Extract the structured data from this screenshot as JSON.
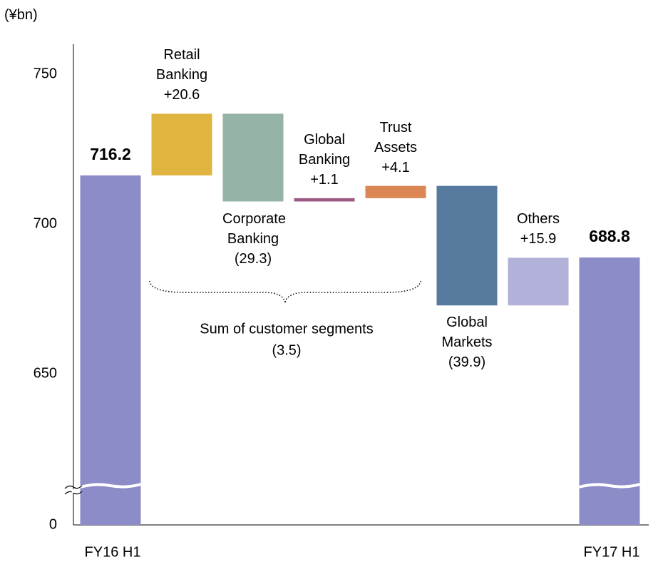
{
  "chart_data": {
    "type": "waterfall",
    "y_label": "(¥bn)",
    "categories": [
      "FY16 H1",
      "Retail Banking",
      "Corporate Banking",
      "Global Banking",
      "Trust Assets",
      "Global Markets",
      "Others",
      "FY17 H1"
    ],
    "measures": [
      "absolute",
      "relative",
      "relative",
      "relative",
      "relative",
      "relative",
      "relative",
      "total"
    ],
    "values": [
      716.2,
      20.6,
      -29.3,
      1.1,
      4.1,
      -39.9,
      15.9,
      688.8
    ],
    "value_labels": [
      "716.2",
      "+20.6",
      "(29.3)",
      "+1.1",
      "+4.1",
      "(39.9)",
      "+15.9",
      "688.8"
    ],
    "colors": [
      "#8c8cc8",
      "#dfb43f",
      "#96b4a6",
      "#9c5a82",
      "#dc8656",
      "#567a9e",
      "#b1b1da",
      "#8c8cc8"
    ],
    "ylim": [
      0,
      760
    ],
    "yticks": [
      0,
      650,
      700,
      750
    ],
    "axis_break": true,
    "annotations": [
      {
        "text": "Sum of customer segments",
        "value": -3.5,
        "label": "(3.5)"
      }
    ]
  }
}
